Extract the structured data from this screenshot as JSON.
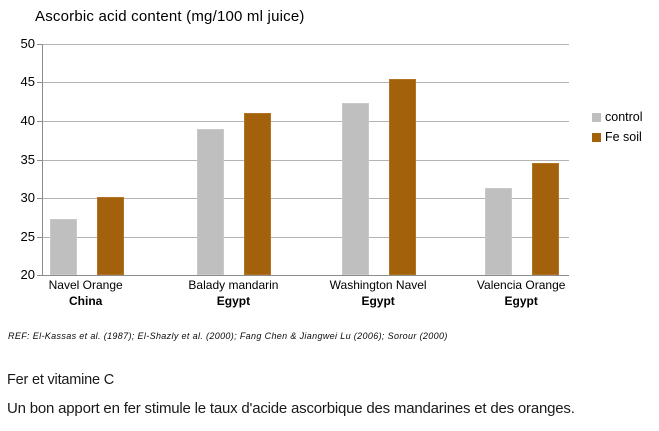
{
  "chart_data": {
    "type": "bar",
    "title": "Ascorbic acid content (mg/100 ml juice)",
    "categories": [
      {
        "name": "Navel Orange",
        "region": "China"
      },
      {
        "name": "Balady mandarin",
        "region": "Egypt"
      },
      {
        "name": "Washington Navel",
        "region": "Egypt"
      },
      {
        "name": "Valencia Orange",
        "region": "Egypt"
      }
    ],
    "series": [
      {
        "name": "control",
        "color": "#bfbfbf",
        "values": [
          27.3,
          38.9,
          42.3,
          31.3
        ]
      },
      {
        "name": "Fe soil",
        "color": "#a4610b",
        "values": [
          30.1,
          41.0,
          45.5,
          34.6
        ]
      }
    ],
    "ylim": [
      20,
      50
    ],
    "yticks": [
      50,
      45,
      40,
      35,
      30,
      25,
      20
    ],
    "grid": true,
    "legend_position": "right"
  },
  "reference": "REF: El-Kassas et al. (1987); El-Shazly et al. (2000); Fang Chen & Jiangwei Lu (2006); Sorour (2000)",
  "caption": {
    "heading": "Fer et vitamine C",
    "body": "Un bon apport en fer stimule le taux d'acide ascorbique des mandarines et des oranges."
  },
  "colors": {
    "control": "#bfbfbf",
    "fe_soil": "#a4610b",
    "axis": "#8c8c8c",
    "gridline": "#b3b3b3"
  }
}
